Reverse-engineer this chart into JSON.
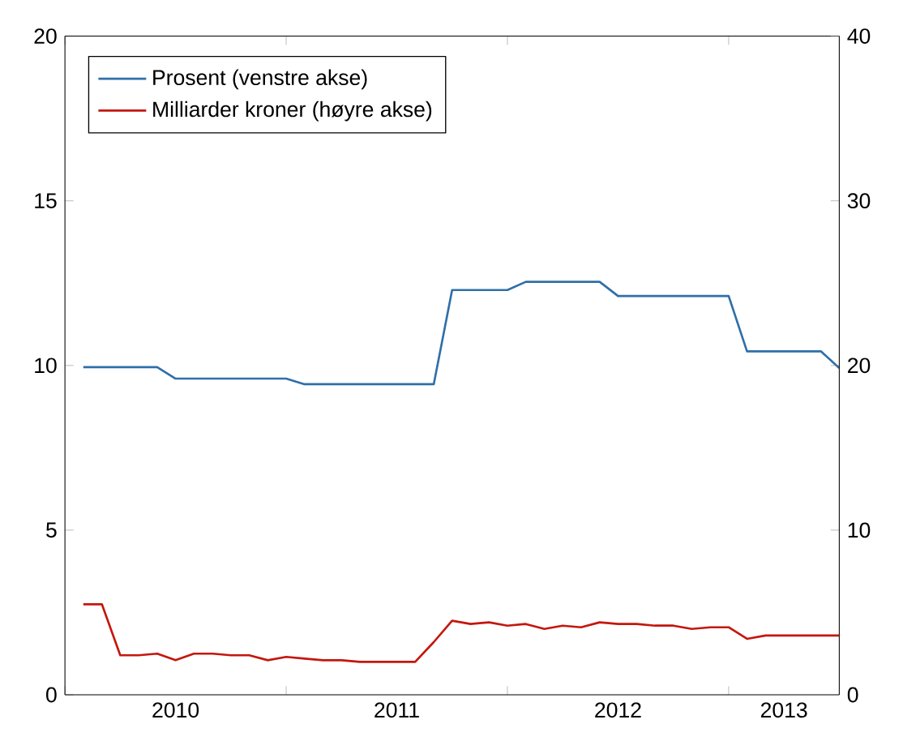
{
  "chart_data": {
    "type": "line",
    "x": [
      2010.083,
      2010.167,
      2010.25,
      2010.333,
      2010.417,
      2010.5,
      2010.583,
      2010.667,
      2010.75,
      2010.833,
      2010.917,
      2011.0,
      2011.083,
      2011.167,
      2011.25,
      2011.333,
      2011.417,
      2011.5,
      2011.583,
      2011.667,
      2011.75,
      2011.833,
      2011.917,
      2012.0,
      2012.083,
      2012.167,
      2012.25,
      2012.333,
      2012.417,
      2012.5,
      2012.583,
      2012.667,
      2012.75,
      2012.833,
      2012.917,
      2013.0,
      2013.083,
      2013.167,
      2013.25,
      2013.333,
      2013.417,
      2013.5
    ],
    "series": [
      {
        "name": "Prosent (venstre akse)",
        "color": "#2f6fa8",
        "values": [
          9.95,
          9.95,
          9.95,
          9.95,
          9.95,
          9.6,
          9.6,
          9.6,
          9.6,
          9.6,
          9.6,
          9.6,
          9.43,
          9.43,
          9.43,
          9.43,
          9.43,
          9.43,
          9.43,
          9.43,
          12.29,
          12.29,
          12.29,
          12.29,
          12.54,
          12.54,
          12.54,
          12.54,
          12.54,
          12.11,
          12.11,
          12.11,
          12.11,
          12.11,
          12.11,
          12.11,
          10.43,
          10.43,
          10.43,
          10.43,
          10.43,
          9.92
        ]
      },
      {
        "name": "Milliarder kroner (høyre akse)",
        "color": "#c4170e",
        "axis": "y2",
        "values": [
          5.5,
          5.5,
          2.4,
          2.4,
          2.5,
          2.1,
          2.5,
          2.5,
          2.4,
          2.4,
          2.1,
          2.3,
          2.2,
          2.1,
          2.1,
          2.0,
          2.0,
          2.0,
          2.0,
          3.2,
          4.5,
          4.3,
          4.4,
          4.2,
          4.3,
          4.0,
          4.2,
          4.1,
          4.4,
          4.3,
          4.3,
          4.2,
          4.2,
          4.0,
          4.1,
          4.1,
          3.4,
          3.6,
          3.6,
          3.6,
          3.6,
          3.6
        ]
      }
    ],
    "xlim": [
      2010,
      2013.5
    ],
    "xticks": [
      {
        "value": 2010,
        "label": null
      },
      {
        "value": 2010.5,
        "label": "2010"
      },
      {
        "value": 2011,
        "label": null
      },
      {
        "value": 2011.5,
        "label": "2011"
      },
      {
        "value": 2012,
        "label": null
      },
      {
        "value": 2012.5,
        "label": "2012"
      },
      {
        "value": 2013,
        "label": null
      },
      {
        "value": 2013.25,
        "label": "2013"
      }
    ],
    "ylim": [
      0,
      20
    ],
    "yticks": [
      0,
      5,
      10,
      15,
      20
    ],
    "y2lim": [
      0,
      40
    ],
    "y2ticks": [
      0,
      10,
      20,
      30,
      40
    ],
    "grid": false,
    "legend": "top left",
    "marker": "none",
    "line_style": "solid"
  }
}
